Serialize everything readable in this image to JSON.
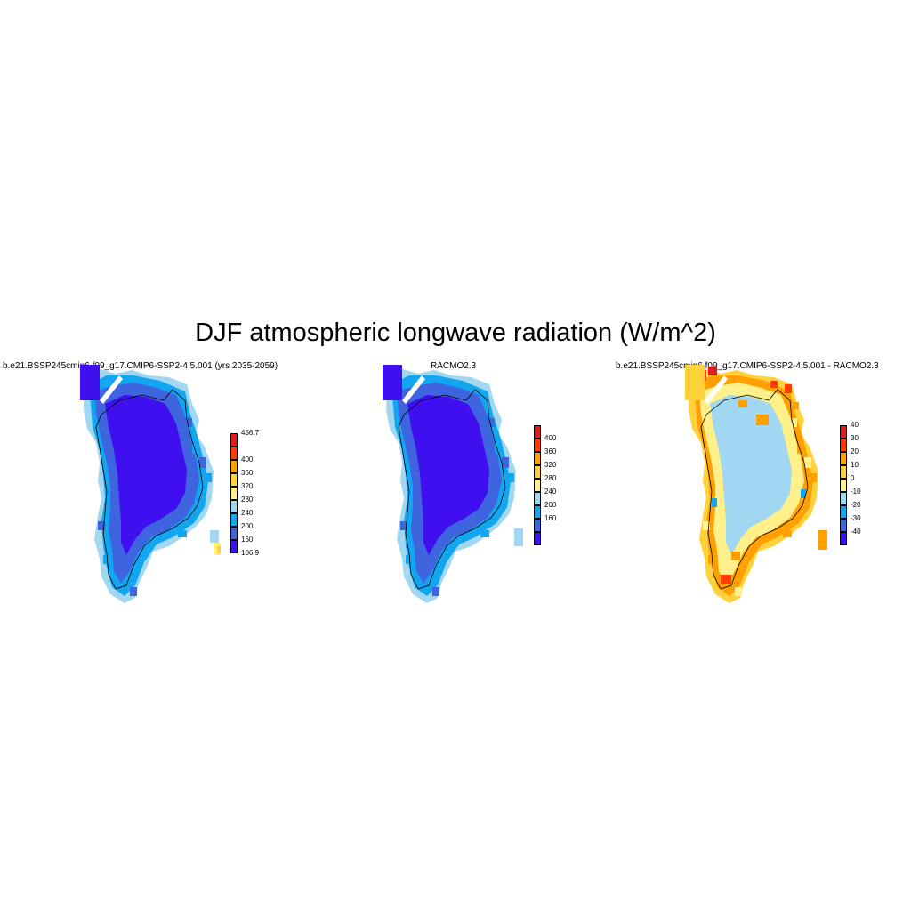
{
  "title": "DJF atmospheric longwave radiation (W/m^2)",
  "panels": [
    {
      "title": "b.e21.BSSP245cmip6.f09_g17.CMIP6-SSP2-4.5.001 (yrs 2035-2059)",
      "colorbar": {
        "colors": [
          "#3f0ff0",
          "#3e64e0",
          "#12a5f0",
          "#a1d7f0",
          "#fff08a",
          "#ffd23c",
          "#ffa000",
          "#ff3c00",
          "#dc1e1e"
        ],
        "labels": [
          "106.9",
          "160",
          "200",
          "240",
          "280",
          "320",
          "360",
          "400",
          "456.7"
        ],
        "label_style": "edges"
      },
      "map": {
        "inner": "#3f0ff0",
        "mid": "#3e64e0",
        "outer": "#12a5f0",
        "edge": "#a1d7f0",
        "accents": [
          "#fff08a",
          "#ffd23c"
        ]
      }
    },
    {
      "title": "RACMO2.3",
      "colorbar": {
        "colors": [
          "#3f0ff0",
          "#3e64e0",
          "#12a5f0",
          "#a1d7f0",
          "#fff08a",
          "#ffd23c",
          "#ffa000",
          "#ff3c00",
          "#dc1e1e"
        ],
        "labels": [
          "160",
          "200",
          "240",
          "280",
          "320",
          "360",
          "400"
        ],
        "label_style": "internal"
      },
      "map": {
        "inner": "#3f0ff0",
        "mid": "#3e64e0",
        "outer": "#12a5f0",
        "edge": "#a1d7f0",
        "accents": []
      }
    },
    {
      "title": "b.e21.BSSP245cmip6.f09_g17.CMIP6-SSP2-4.5.001 - RACMO2.3",
      "colorbar": {
        "colors": [
          "#3f0ff0",
          "#3e64e0",
          "#12a5f0",
          "#a1d7f0",
          "#fff08a",
          "#ffd23c",
          "#ffa000",
          "#ff3c00",
          "#dc1e1e"
        ],
        "labels": [
          "-40",
          "-30",
          "-20",
          "-10",
          "0",
          "10",
          "20",
          "30",
          "40"
        ],
        "label_style": "internal"
      },
      "map": {
        "inner": "#a1d7f0",
        "mid": "#fff08a",
        "outer": "#ffa000",
        "edge": "#ffd23c",
        "accents": [
          "#ff3c00",
          "#dc1e1e",
          "#12a5f0"
        ]
      }
    }
  ]
}
